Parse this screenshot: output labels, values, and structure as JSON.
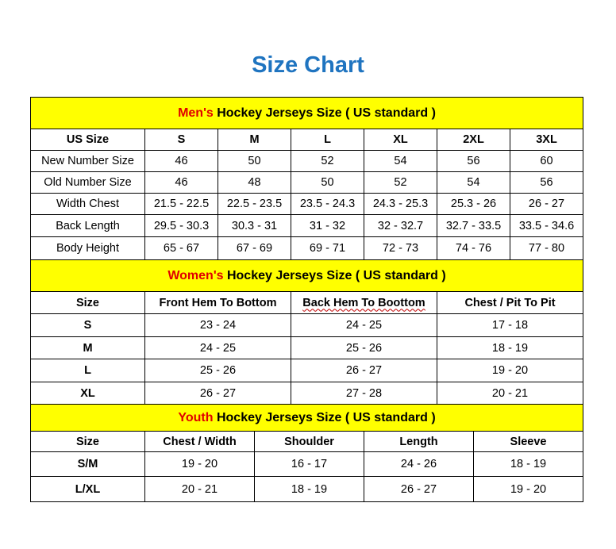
{
  "title": "Size Chart",
  "colors": {
    "header_bg": "#ffff00",
    "title": "#1f74c0",
    "accent_red": "#e00000"
  },
  "mens": {
    "heading_prefix": "Men's",
    "heading_rest": " Hockey Jerseys Size ( US standard )",
    "columns": [
      "US Size",
      "S",
      "M",
      "L",
      "XL",
      "2XL",
      "3XL"
    ],
    "rows": [
      [
        "New Number Size",
        "46",
        "50",
        "52",
        "54",
        "56",
        "60"
      ],
      [
        "Old Number Size",
        "46",
        "48",
        "50",
        "52",
        "54",
        "56"
      ],
      [
        "Width Chest",
        "21.5 - 22.5",
        "22.5 - 23.5",
        "23.5 - 24.3",
        "24.3 - 25.3",
        "25.3 - 26",
        "26 - 27"
      ],
      [
        "Back Length",
        "29.5 - 30.3",
        "30.3 - 31",
        "31 - 32",
        "32 - 32.7",
        "32.7 - 33.5",
        "33.5 - 34.6"
      ],
      [
        "Body Height",
        "65 - 67",
        "67 - 69",
        "69 - 71",
        "72 - 73",
        "74 - 76",
        "77 - 80"
      ]
    ]
  },
  "womens": {
    "heading_prefix": "Women's",
    "heading_rest": " Hockey Jerseys Size ( US standard )",
    "columns": [
      "Size",
      "Front Hem To Bottom",
      "Back Hem To Boottom",
      "Chest / Pit To Pit"
    ],
    "rows": [
      [
        "S",
        "23 - 24",
        "24 - 25",
        "17 - 18"
      ],
      [
        "M",
        "24 - 25",
        "25 - 26",
        "18 - 19"
      ],
      [
        "L",
        "25 - 26",
        "26 - 27",
        "19 - 20"
      ],
      [
        "XL",
        "26 - 27",
        "27 - 28",
        "20 - 21"
      ]
    ]
  },
  "youth": {
    "heading_prefix": "Youth",
    "heading_rest": " Hockey Jerseys Size ( US standard )",
    "columns": [
      "Size",
      "Chest / Width",
      "Shoulder",
      "Length",
      "Sleeve"
    ],
    "rows": [
      [
        "S/M",
        "19 - 20",
        "16 - 17",
        "24 - 26",
        "18 - 19"
      ],
      [
        "L/XL",
        "20 - 21",
        "18 - 19",
        "26 - 27",
        "19 - 20"
      ]
    ]
  }
}
